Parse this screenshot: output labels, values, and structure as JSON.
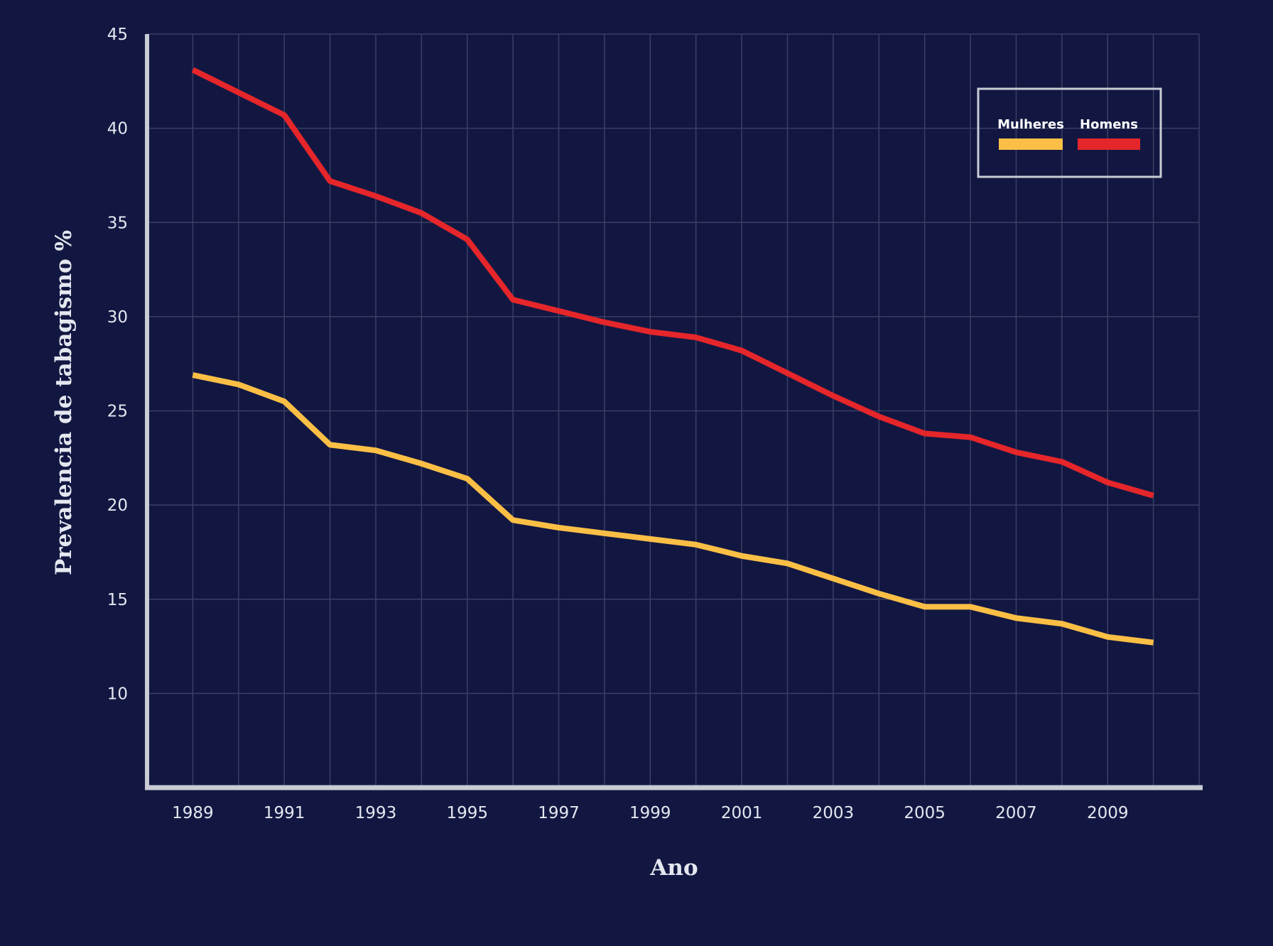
{
  "chart_data": {
    "type": "line",
    "xlabel": "Ano",
    "ylabel": "Prevalencia de tabagismo %",
    "x": [
      1989,
      1990,
      1991,
      1992,
      1993,
      1994,
      1995,
      1996,
      1997,
      1998,
      1999,
      2000,
      2001,
      2002,
      2003,
      2004,
      2005,
      2006,
      2007,
      2008,
      2009,
      2010
    ],
    "x_ticks": [
      1989,
      1991,
      1993,
      1995,
      1997,
      1999,
      2001,
      2003,
      2005,
      2007,
      2009
    ],
    "xlim": [
      1988,
      2011
    ],
    "y_ticks": [
      10,
      15,
      20,
      25,
      30,
      35,
      40,
      45
    ],
    "ylim": [
      5,
      45
    ],
    "grid": true,
    "legend_position": "top-right",
    "series": [
      {
        "name": "Mulheres",
        "color": "#fbbf45",
        "values": [
          26.9,
          26.4,
          25.5,
          23.2,
          22.9,
          22.2,
          21.4,
          19.2,
          18.8,
          18.5,
          18.2,
          17.9,
          17.3,
          16.9,
          16.1,
          15.3,
          14.6,
          14.6,
          14.0,
          13.7,
          13.0,
          12.7
        ]
      },
      {
        "name": "Homens",
        "color": "#e5262a",
        "values": [
          43.1,
          41.9,
          40.7,
          37.2,
          36.4,
          35.5,
          34.1,
          30.9,
          30.3,
          29.7,
          29.2,
          28.9,
          28.2,
          27.0,
          25.8,
          24.7,
          23.8,
          23.6,
          22.8,
          22.3,
          21.2,
          20.5
        ]
      }
    ]
  }
}
